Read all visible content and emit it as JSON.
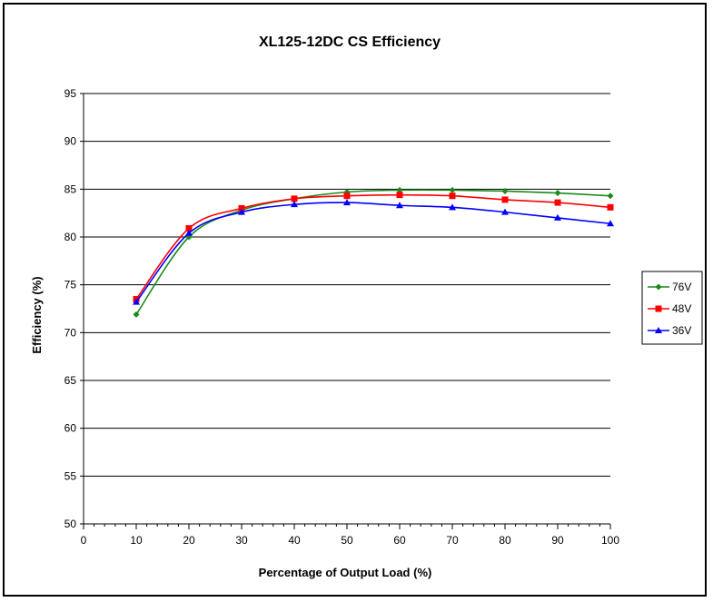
{
  "chart_data": {
    "type": "line",
    "title": "XL125-12DC  CS Efficiency",
    "xlabel": "Percentage of Output Load (%)",
    "ylabel": "Efficiency (%)",
    "xlim": [
      0,
      100
    ],
    "ylim": [
      50,
      95
    ],
    "xticks": [
      0,
      10,
      20,
      30,
      40,
      50,
      60,
      70,
      80,
      90,
      100
    ],
    "yticks": [
      50,
      55,
      60,
      65,
      70,
      75,
      80,
      85,
      90,
      95
    ],
    "grid": "horizontal",
    "legend_position": "right",
    "series": [
      {
        "name": "76V",
        "color": "#1a8a1a",
        "marker": "diamond",
        "x": [
          10,
          20,
          30,
          40,
          50,
          60,
          70,
          80,
          90,
          100
        ],
        "y": [
          71.9,
          80.0,
          82.8,
          84.0,
          84.7,
          84.9,
          84.9,
          84.8,
          84.6,
          84.3
        ]
      },
      {
        "name": "48V",
        "color": "#ff0000",
        "marker": "square",
        "x": [
          10,
          20,
          30,
          40,
          50,
          60,
          70,
          80,
          90,
          100
        ],
        "y": [
          73.5,
          80.9,
          83.0,
          84.0,
          84.3,
          84.4,
          84.3,
          83.9,
          83.6,
          83.1
        ]
      },
      {
        "name": "36V",
        "color": "#0000ff",
        "marker": "triangle",
        "x": [
          10,
          20,
          30,
          40,
          50,
          60,
          70,
          80,
          90,
          100
        ],
        "y": [
          73.2,
          80.4,
          82.6,
          83.4,
          83.6,
          83.3,
          83.1,
          82.6,
          82.0,
          81.4
        ]
      }
    ]
  }
}
